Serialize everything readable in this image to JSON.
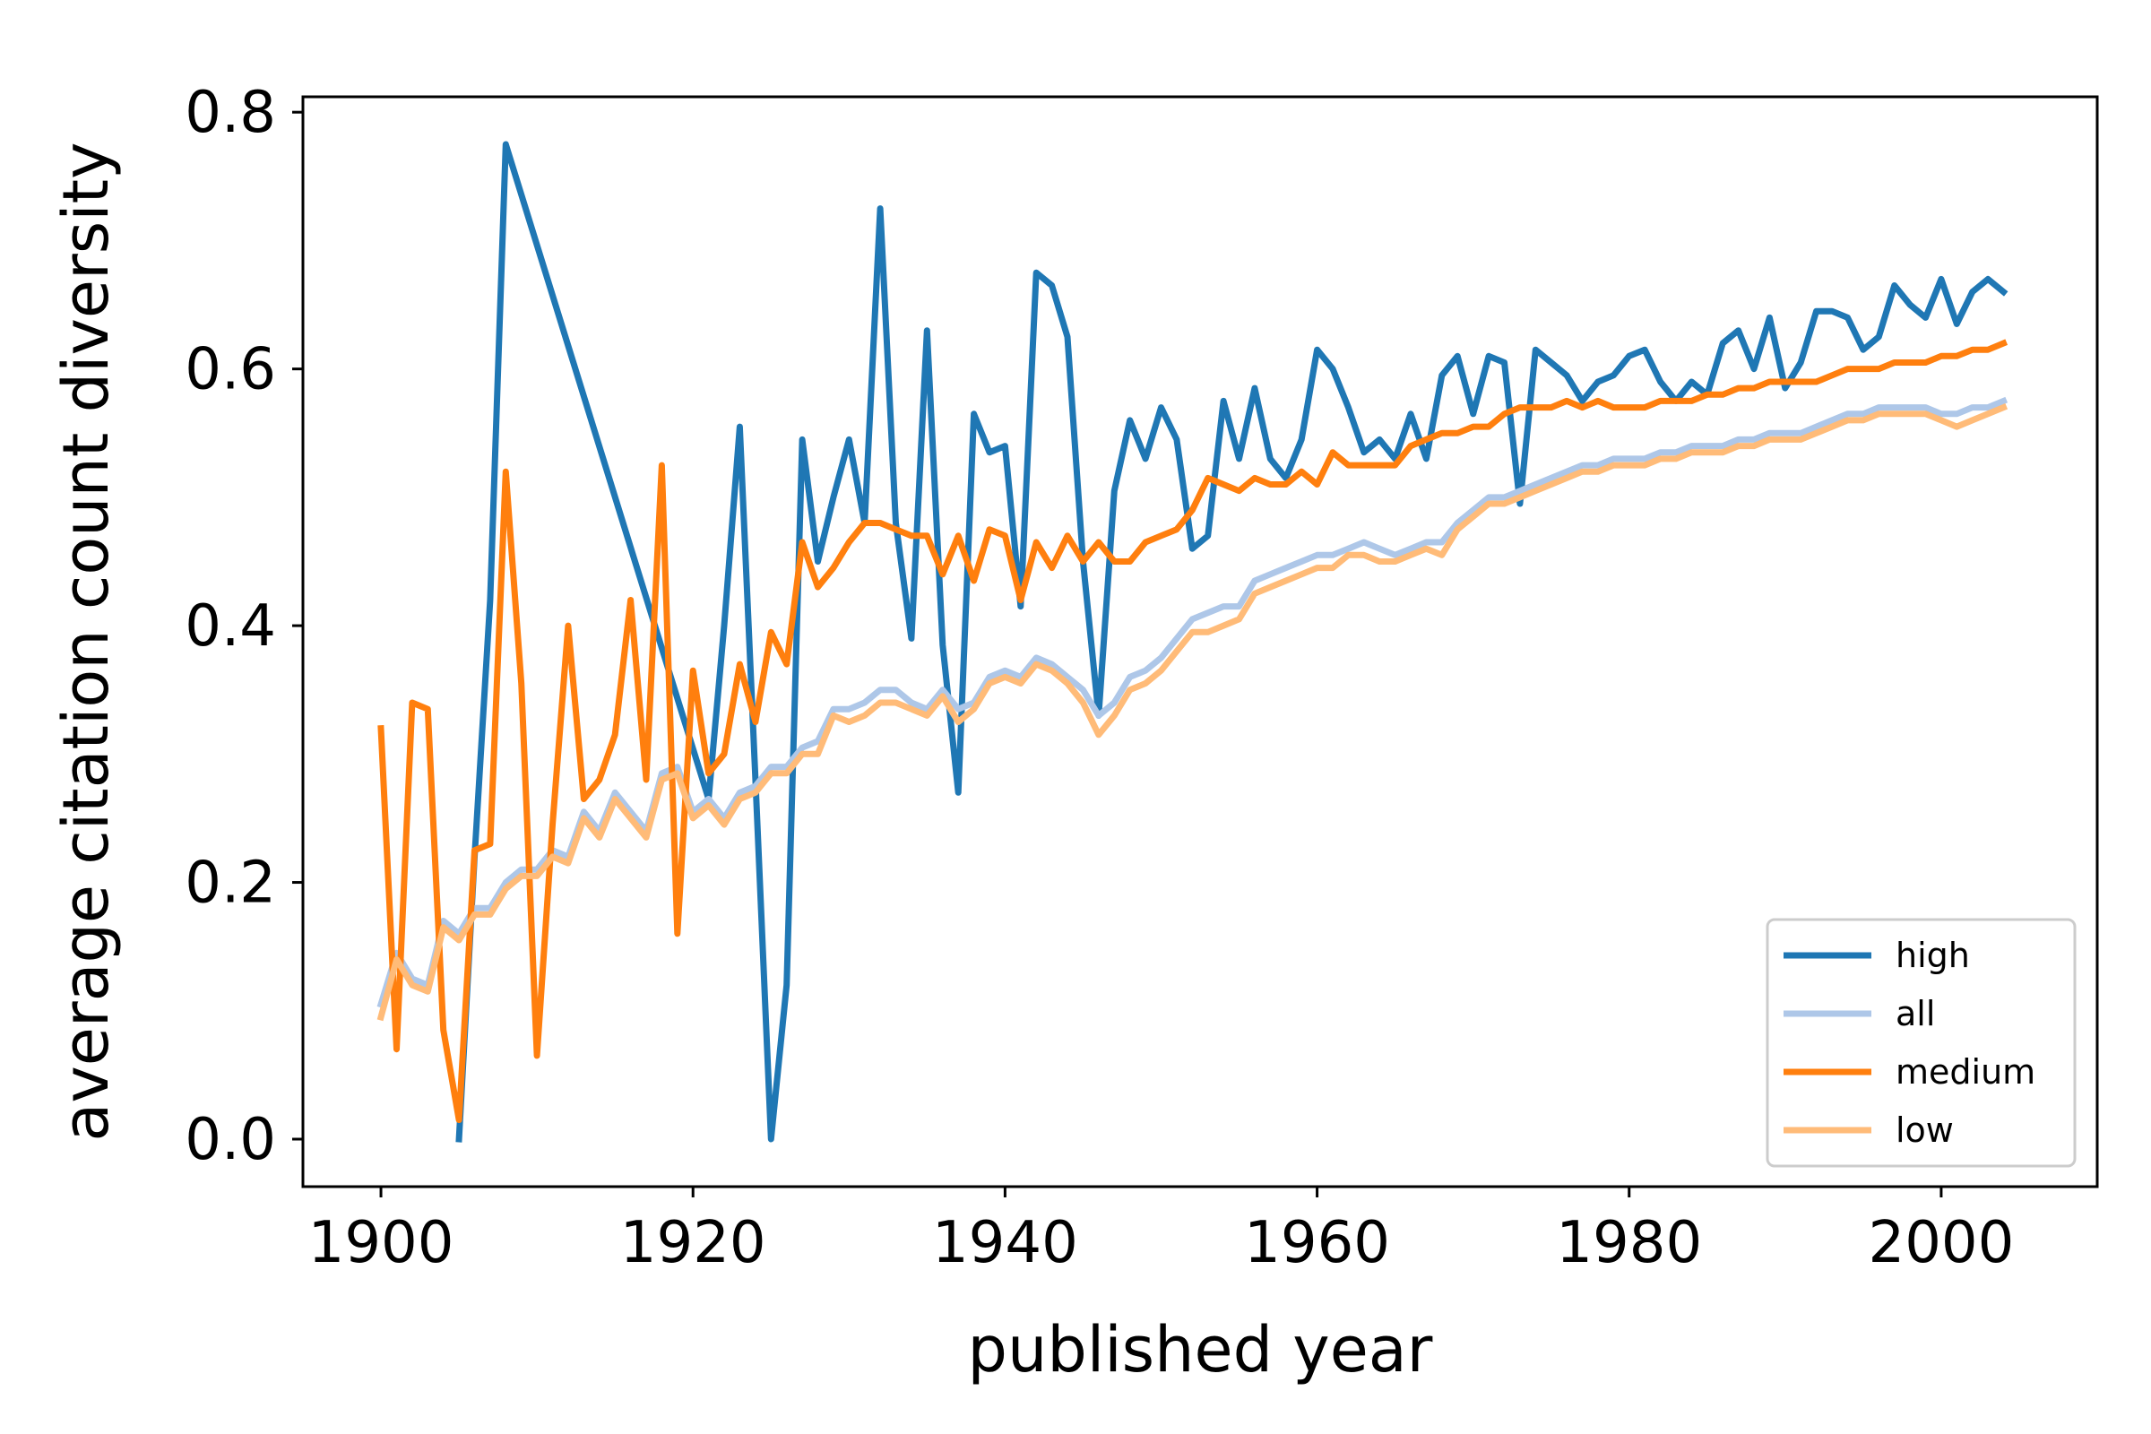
{
  "chart_data": {
    "type": "line",
    "title": "",
    "xlabel": "published year",
    "ylabel": "average citation count diversity",
    "xlim": [
      1895,
      2010
    ],
    "ylim": [
      -0.037,
      0.812
    ],
    "xticks": [
      1900,
      1920,
      1940,
      1960,
      1980,
      2000
    ],
    "yticks": [
      0.0,
      0.2,
      0.4,
      0.6,
      0.8
    ],
    "xtick_labels": [
      "1900",
      "1920",
      "1940",
      "1960",
      "1980",
      "2000"
    ],
    "ytick_labels": [
      "0.0",
      "0.2",
      "0.4",
      "0.6",
      "0.8"
    ],
    "grid": false,
    "legend": {
      "placement": "lower-right"
    },
    "series": [
      {
        "name": "high",
        "color": "#1f77b4",
        "x": [
          1905,
          1906,
          1907,
          1908,
          1921,
          1922,
          1923,
          1924,
          1925,
          1926,
          1927,
          1928,
          1929,
          1930,
          1931,
          1932,
          1933,
          1934,
          1935,
          1936,
          1937,
          1938,
          1939,
          1940,
          1941,
          1942,
          1943,
          1944,
          1945,
          1946,
          1947,
          1948,
          1949,
          1950,
          1951,
          1952,
          1953,
          1954,
          1955,
          1956,
          1957,
          1958,
          1959,
          1960,
          1961,
          1962,
          1963,
          1964,
          1965,
          1966,
          1967,
          1968,
          1969,
          1970,
          1971,
          1972,
          1973,
          1974,
          1975,
          1976,
          1977,
          1978,
          1979,
          1980,
          1981,
          1982,
          1983,
          1984,
          1985,
          1986,
          1987,
          1988,
          1989,
          1990,
          1991,
          1992,
          1993,
          1994,
          1995,
          1996,
          1997,
          1998,
          1999,
          2000,
          2001,
          2002,
          2003,
          2004
        ],
        "values": [
          0.0,
          0.22,
          0.42,
          0.775,
          0.265,
          0.4,
          0.555,
          0.28,
          0.0,
          0.12,
          0.545,
          0.45,
          0.5,
          0.545,
          0.48,
          0.725,
          0.48,
          0.39,
          0.63,
          0.385,
          0.27,
          0.565,
          0.535,
          0.54,
          0.415,
          0.675,
          0.665,
          0.625,
          0.45,
          0.33,
          0.505,
          0.56,
          0.53,
          0.57,
          0.545,
          0.46,
          0.47,
          0.575,
          0.53,
          0.585,
          0.53,
          0.515,
          0.545,
          0.615,
          0.6,
          0.57,
          0.535,
          0.545,
          0.53,
          0.565,
          0.53,
          0.595,
          0.61,
          0.565,
          0.61,
          0.605,
          0.495,
          0.615,
          0.605,
          0.595,
          0.575,
          0.59,
          0.595,
          0.61,
          0.615,
          0.59,
          0.575,
          0.59,
          0.58,
          0.62,
          0.63,
          0.6,
          0.64,
          0.585,
          0.605,
          0.645,
          0.645,
          0.64,
          0.615,
          0.625,
          0.665,
          0.65,
          0.64,
          0.67,
          0.635,
          0.66,
          0.67,
          0.66
        ]
      },
      {
        "name": "all",
        "color": "#aec7e8",
        "x": [
          1900,
          1901,
          1902,
          1903,
          1904,
          1905,
          1906,
          1907,
          1908,
          1909,
          1910,
          1911,
          1912,
          1913,
          1914,
          1915,
          1916,
          1917,
          1918,
          1919,
          1920,
          1921,
          1922,
          1923,
          1924,
          1925,
          1926,
          1927,
          1928,
          1929,
          1930,
          1931,
          1932,
          1933,
          1934,
          1935,
          1936,
          1937,
          1938,
          1939,
          1940,
          1941,
          1942,
          1943,
          1944,
          1945,
          1946,
          1947,
          1948,
          1949,
          1950,
          1951,
          1952,
          1953,
          1954,
          1955,
          1956,
          1957,
          1958,
          1959,
          1960,
          1961,
          1962,
          1963,
          1964,
          1965,
          1966,
          1967,
          1968,
          1969,
          1970,
          1971,
          1972,
          1973,
          1974,
          1975,
          1976,
          1977,
          1978,
          1979,
          1980,
          1981,
          1982,
          1983,
          1984,
          1985,
          1986,
          1987,
          1988,
          1989,
          1990,
          1991,
          1992,
          1993,
          1994,
          1995,
          1996,
          1997,
          1998,
          1999,
          2000,
          2001,
          2002,
          2003,
          2004
        ],
        "values": [
          0.105,
          0.145,
          0.125,
          0.12,
          0.17,
          0.16,
          0.18,
          0.18,
          0.2,
          0.21,
          0.21,
          0.225,
          0.22,
          0.255,
          0.24,
          0.27,
          0.255,
          0.24,
          0.285,
          0.29,
          0.255,
          0.265,
          0.25,
          0.27,
          0.275,
          0.29,
          0.29,
          0.305,
          0.31,
          0.335,
          0.335,
          0.34,
          0.35,
          0.35,
          0.34,
          0.335,
          0.35,
          0.335,
          0.34,
          0.36,
          0.365,
          0.36,
          0.375,
          0.37,
          0.36,
          0.35,
          0.33,
          0.34,
          0.36,
          0.365,
          0.375,
          0.39,
          0.405,
          0.41,
          0.415,
          0.415,
          0.435,
          0.44,
          0.445,
          0.45,
          0.455,
          0.455,
          0.46,
          0.465,
          0.46,
          0.455,
          0.46,
          0.465,
          0.465,
          0.48,
          0.49,
          0.5,
          0.5,
          0.505,
          0.51,
          0.515,
          0.52,
          0.525,
          0.525,
          0.53,
          0.53,
          0.53,
          0.535,
          0.535,
          0.54,
          0.54,
          0.54,
          0.545,
          0.545,
          0.55,
          0.55,
          0.55,
          0.555,
          0.56,
          0.565,
          0.565,
          0.57,
          0.57,
          0.57,
          0.57,
          0.565,
          0.565,
          0.57,
          0.57,
          0.575
        ]
      },
      {
        "name": "medium",
        "color": "#ff7f0e",
        "x": [
          1900,
          1901,
          1902,
          1903,
          1904,
          1905,
          1906,
          1907,
          1908,
          1909,
          1910,
          1911,
          1912,
          1913,
          1914,
          1915,
          1916,
          1917,
          1918,
          1919,
          1920,
          1921,
          1922,
          1923,
          1924,
          1925,
          1926,
          1927,
          1928,
          1929,
          1930,
          1931,
          1932,
          1933,
          1934,
          1935,
          1936,
          1937,
          1938,
          1939,
          1940,
          1941,
          1942,
          1943,
          1944,
          1945,
          1946,
          1947,
          1948,
          1949,
          1950,
          1951,
          1952,
          1953,
          1954,
          1955,
          1956,
          1957,
          1958,
          1959,
          1960,
          1961,
          1962,
          1963,
          1964,
          1965,
          1966,
          1967,
          1968,
          1969,
          1970,
          1971,
          1972,
          1973,
          1974,
          1975,
          1976,
          1977,
          1978,
          1979,
          1980,
          1981,
          1982,
          1983,
          1984,
          1985,
          1986,
          1987,
          1988,
          1989,
          1990,
          1991,
          1992,
          1993,
          1994,
          1995,
          1996,
          1997,
          1998,
          1999,
          2000,
          2001,
          2002,
          2003,
          2004
        ],
        "values": [
          0.32,
          0.07,
          0.34,
          0.335,
          0.085,
          0.015,
          0.225,
          0.23,
          0.52,
          0.355,
          0.065,
          0.245,
          0.4,
          0.265,
          0.28,
          0.315,
          0.42,
          0.28,
          0.525,
          0.16,
          0.365,
          0.285,
          0.3,
          0.37,
          0.325,
          0.395,
          0.37,
          0.465,
          0.43,
          0.445,
          0.465,
          0.48,
          0.48,
          0.475,
          0.47,
          0.47,
          0.44,
          0.47,
          0.435,
          0.475,
          0.47,
          0.42,
          0.465,
          0.445,
          0.47,
          0.45,
          0.465,
          0.45,
          0.45,
          0.465,
          0.47,
          0.475,
          0.49,
          0.515,
          0.51,
          0.505,
          0.515,
          0.51,
          0.51,
          0.52,
          0.51,
          0.535,
          0.525,
          0.525,
          0.525,
          0.525,
          0.54,
          0.545,
          0.55,
          0.55,
          0.555,
          0.555,
          0.565,
          0.57,
          0.57,
          0.57,
          0.575,
          0.57,
          0.575,
          0.57,
          0.57,
          0.57,
          0.575,
          0.575,
          0.575,
          0.58,
          0.58,
          0.585,
          0.585,
          0.59,
          0.59,
          0.59,
          0.59,
          0.595,
          0.6,
          0.6,
          0.6,
          0.605,
          0.605,
          0.605,
          0.61,
          0.61,
          0.615,
          0.615,
          0.62
        ]
      },
      {
        "name": "low",
        "color": "#ffbb78",
        "x": [
          1900,
          1901,
          1902,
          1903,
          1904,
          1905,
          1906,
          1907,
          1908,
          1909,
          1910,
          1911,
          1912,
          1913,
          1914,
          1915,
          1916,
          1917,
          1918,
          1919,
          1920,
          1921,
          1922,
          1923,
          1924,
          1925,
          1926,
          1927,
          1928,
          1929,
          1930,
          1931,
          1932,
          1933,
          1934,
          1935,
          1936,
          1937,
          1938,
          1939,
          1940,
          1941,
          1942,
          1943,
          1944,
          1945,
          1946,
          1947,
          1948,
          1949,
          1950,
          1951,
          1952,
          1953,
          1954,
          1955,
          1956,
          1957,
          1958,
          1959,
          1960,
          1961,
          1962,
          1963,
          1964,
          1965,
          1966,
          1967,
          1968,
          1969,
          1970,
          1971,
          1972,
          1973,
          1974,
          1975,
          1976,
          1977,
          1978,
          1979,
          1980,
          1981,
          1982,
          1983,
          1984,
          1985,
          1986,
          1987,
          1988,
          1989,
          1990,
          1991,
          1992,
          1993,
          1994,
          1995,
          1996,
          1997,
          1998,
          1999,
          2000,
          2001,
          2002,
          2003,
          2004
        ],
        "values": [
          0.095,
          0.14,
          0.12,
          0.115,
          0.165,
          0.155,
          0.175,
          0.175,
          0.195,
          0.205,
          0.205,
          0.22,
          0.215,
          0.25,
          0.235,
          0.265,
          0.25,
          0.235,
          0.28,
          0.285,
          0.25,
          0.26,
          0.245,
          0.265,
          0.27,
          0.285,
          0.285,
          0.3,
          0.3,
          0.33,
          0.325,
          0.33,
          0.34,
          0.34,
          0.335,
          0.33,
          0.345,
          0.325,
          0.335,
          0.355,
          0.36,
          0.355,
          0.37,
          0.365,
          0.355,
          0.34,
          0.315,
          0.33,
          0.35,
          0.355,
          0.365,
          0.38,
          0.395,
          0.395,
          0.4,
          0.405,
          0.425,
          0.43,
          0.435,
          0.44,
          0.445,
          0.445,
          0.455,
          0.455,
          0.45,
          0.45,
          0.455,
          0.46,
          0.455,
          0.475,
          0.485,
          0.495,
          0.495,
          0.5,
          0.505,
          0.51,
          0.515,
          0.52,
          0.52,
          0.525,
          0.525,
          0.525,
          0.53,
          0.53,
          0.535,
          0.535,
          0.535,
          0.54,
          0.54,
          0.545,
          0.545,
          0.545,
          0.55,
          0.555,
          0.56,
          0.56,
          0.565,
          0.565,
          0.565,
          0.565,
          0.56,
          0.555,
          0.56,
          0.565,
          0.57
        ]
      }
    ]
  }
}
